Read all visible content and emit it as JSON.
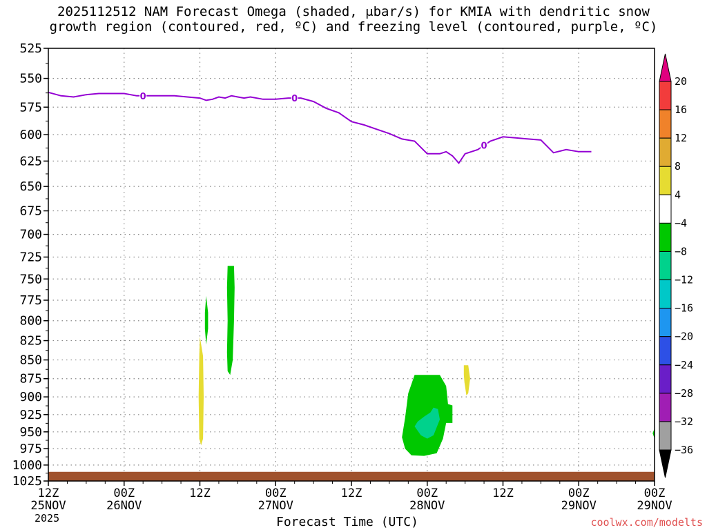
{
  "title_line1": "2025112512 NAM Forecast Omega (shaded, μbar/s) for KMIA with dendritic snow",
  "title_line2": "growth region (contoured, red, ºC) and freezing level (contoured, purple, ºC)",
  "credit": "coolwx.com/modelts",
  "year_label": "2025",
  "chart_data": {
    "type": "heatmap",
    "xlabel": "Forecast Time (UTC)",
    "ylabel": "",
    "x_range_hours": [
      0,
      96
    ],
    "y_range_hpa": [
      525,
      1025
    ],
    "y_scale": "log-pressure, inverted",
    "grid": true,
    "y_ticks": [
      525,
      550,
      575,
      600,
      625,
      650,
      675,
      700,
      725,
      750,
      775,
      800,
      825,
      850,
      875,
      900,
      925,
      950,
      975,
      1000,
      1025
    ],
    "x_ticks": [
      {
        "hour": 0,
        "label": "12Z",
        "date": "25NOV"
      },
      {
        "hour": 12,
        "label": "00Z",
        "date": "26NOV"
      },
      {
        "hour": 24,
        "label": "12Z",
        "date": ""
      },
      {
        "hour": 36,
        "label": "00Z",
        "date": "27NOV"
      },
      {
        "hour": 48,
        "label": "12Z",
        "date": ""
      },
      {
        "hour": 60,
        "label": "00Z",
        "date": "28NOV"
      },
      {
        "hour": 72,
        "label": "12Z",
        "date": ""
      },
      {
        "hour": 84,
        "label": "00Z",
        "date": "29NOV"
      }
    ],
    "colorbar": {
      "labels": [
        "20",
        "16",
        "12",
        "8",
        "4",
        "-4",
        "-8",
        "-12",
        "-16",
        "-20",
        "-24",
        "-28",
        "-32",
        "-36"
      ],
      "colors": [
        "#e0007f",
        "#f23c3c",
        "#f0822a",
        "#e0ab32",
        "#e6dc32",
        "#ffffff",
        "#00c800",
        "#00d28c",
        "#00c8c8",
        "#1e96f0",
        "#2d50e6",
        "#6a1ec8",
        "#a01eb4",
        "#a0a0a0",
        "#000000"
      ]
    },
    "freezing_level": {
      "name": "0",
      "color": "#9400d3",
      "label_hours": [
        15,
        39,
        69
      ],
      "points": [
        [
          0,
          562
        ],
        [
          2,
          565
        ],
        [
          4,
          566
        ],
        [
          6,
          564
        ],
        [
          8,
          563
        ],
        [
          10,
          563
        ],
        [
          12,
          563
        ],
        [
          14,
          565
        ],
        [
          16,
          565
        ],
        [
          18,
          565
        ],
        [
          20,
          565
        ],
        [
          22,
          566
        ],
        [
          24,
          567
        ],
        [
          25,
          569
        ],
        [
          26,
          568
        ],
        [
          27,
          566
        ],
        [
          28,
          567
        ],
        [
          29,
          565
        ],
        [
          30,
          566
        ],
        [
          31,
          567
        ],
        [
          32,
          566
        ],
        [
          34,
          568
        ],
        [
          36,
          568
        ],
        [
          38,
          567
        ],
        [
          40,
          567
        ],
        [
          42,
          570
        ],
        [
          44,
          576
        ],
        [
          46,
          580
        ],
        [
          48,
          588
        ],
        [
          50,
          591
        ],
        [
          52,
          595
        ],
        [
          54,
          599
        ],
        [
          56,
          604
        ],
        [
          58,
          606
        ],
        [
          60,
          618
        ],
        [
          62,
          618
        ],
        [
          63,
          616
        ],
        [
          64,
          620
        ],
        [
          65,
          627
        ],
        [
          66,
          618
        ],
        [
          68,
          614
        ],
        [
          70,
          606
        ],
        [
          72,
          602
        ],
        [
          74,
          603
        ],
        [
          76,
          604
        ],
        [
          78,
          605
        ],
        [
          80,
          617
        ],
        [
          82,
          614
        ],
        [
          84,
          616
        ],
        [
          86,
          616
        ]
      ]
    },
    "omega_regions": [
      {
        "value_range": "4 to 8",
        "color": "#e6dc32",
        "polygon": [
          [
            24.0,
            820
          ],
          [
            24.5,
            845
          ],
          [
            24.6,
            900
          ],
          [
            24.5,
            960
          ],
          [
            24.2,
            970
          ],
          [
            23.9,
            960
          ],
          [
            23.8,
            900
          ],
          [
            23.9,
            845
          ]
        ]
      },
      {
        "value_range": "-4 to -8",
        "color": "#00c800",
        "polygon": [
          [
            25.0,
            770
          ],
          [
            25.3,
            790
          ],
          [
            25.3,
            810
          ],
          [
            25.0,
            830
          ],
          [
            24.8,
            810
          ],
          [
            24.8,
            790
          ]
        ]
      },
      {
        "value_range": "-4 to -8",
        "color": "#00c800",
        "polygon": [
          [
            28.4,
            735
          ],
          [
            29.4,
            735
          ],
          [
            29.5,
            760
          ],
          [
            29.4,
            800
          ],
          [
            29.2,
            850
          ],
          [
            28.8,
            870
          ],
          [
            28.4,
            865
          ],
          [
            28.3,
            840
          ],
          [
            28.4,
            800
          ],
          [
            28.3,
            760
          ]
        ]
      },
      {
        "value_range": "-4 to -8",
        "color": "#00c800",
        "polygon": [
          [
            58.0,
            870
          ],
          [
            62.0,
            870
          ],
          [
            63.0,
            885
          ],
          [
            63.3,
            910
          ],
          [
            64.0,
            912
          ],
          [
            64.0,
            937
          ],
          [
            63.0,
            937
          ],
          [
            62.5,
            960
          ],
          [
            61.5,
            982
          ],
          [
            59.5,
            986
          ],
          [
            57.5,
            985
          ],
          [
            56.5,
            975
          ],
          [
            56.0,
            958
          ],
          [
            56.5,
            930
          ],
          [
            57.0,
            895
          ]
        ]
      },
      {
        "value_range": "-8 to -12",
        "color": "#00d28c",
        "polygon": [
          [
            59.5,
            928
          ],
          [
            60.5,
            922
          ],
          [
            61.0,
            915
          ],
          [
            61.7,
            917
          ],
          [
            62.0,
            932
          ],
          [
            61.0,
            955
          ],
          [
            60.0,
            960
          ],
          [
            59.0,
            955
          ],
          [
            58.0,
            942
          ],
          [
            58.5,
            935
          ]
        ]
      },
      {
        "value_range": "4 to 8",
        "color": "#e6dc32",
        "polygon": [
          [
            65.8,
            857
          ],
          [
            66.5,
            857
          ],
          [
            66.8,
            875
          ],
          [
            66.5,
            895
          ],
          [
            66.2,
            898
          ],
          [
            65.9,
            880
          ],
          [
            65.8,
            870
          ]
        ]
      },
      {
        "value_range": "-4 to -8",
        "color": "#00c800",
        "polygon": [
          [
            96.0,
            945
          ],
          [
            95.7,
            952
          ],
          [
            96.0,
            960
          ]
        ]
      }
    ],
    "surface": {
      "color": "#a0522d",
      "pressure_hpa": 1016
    }
  }
}
